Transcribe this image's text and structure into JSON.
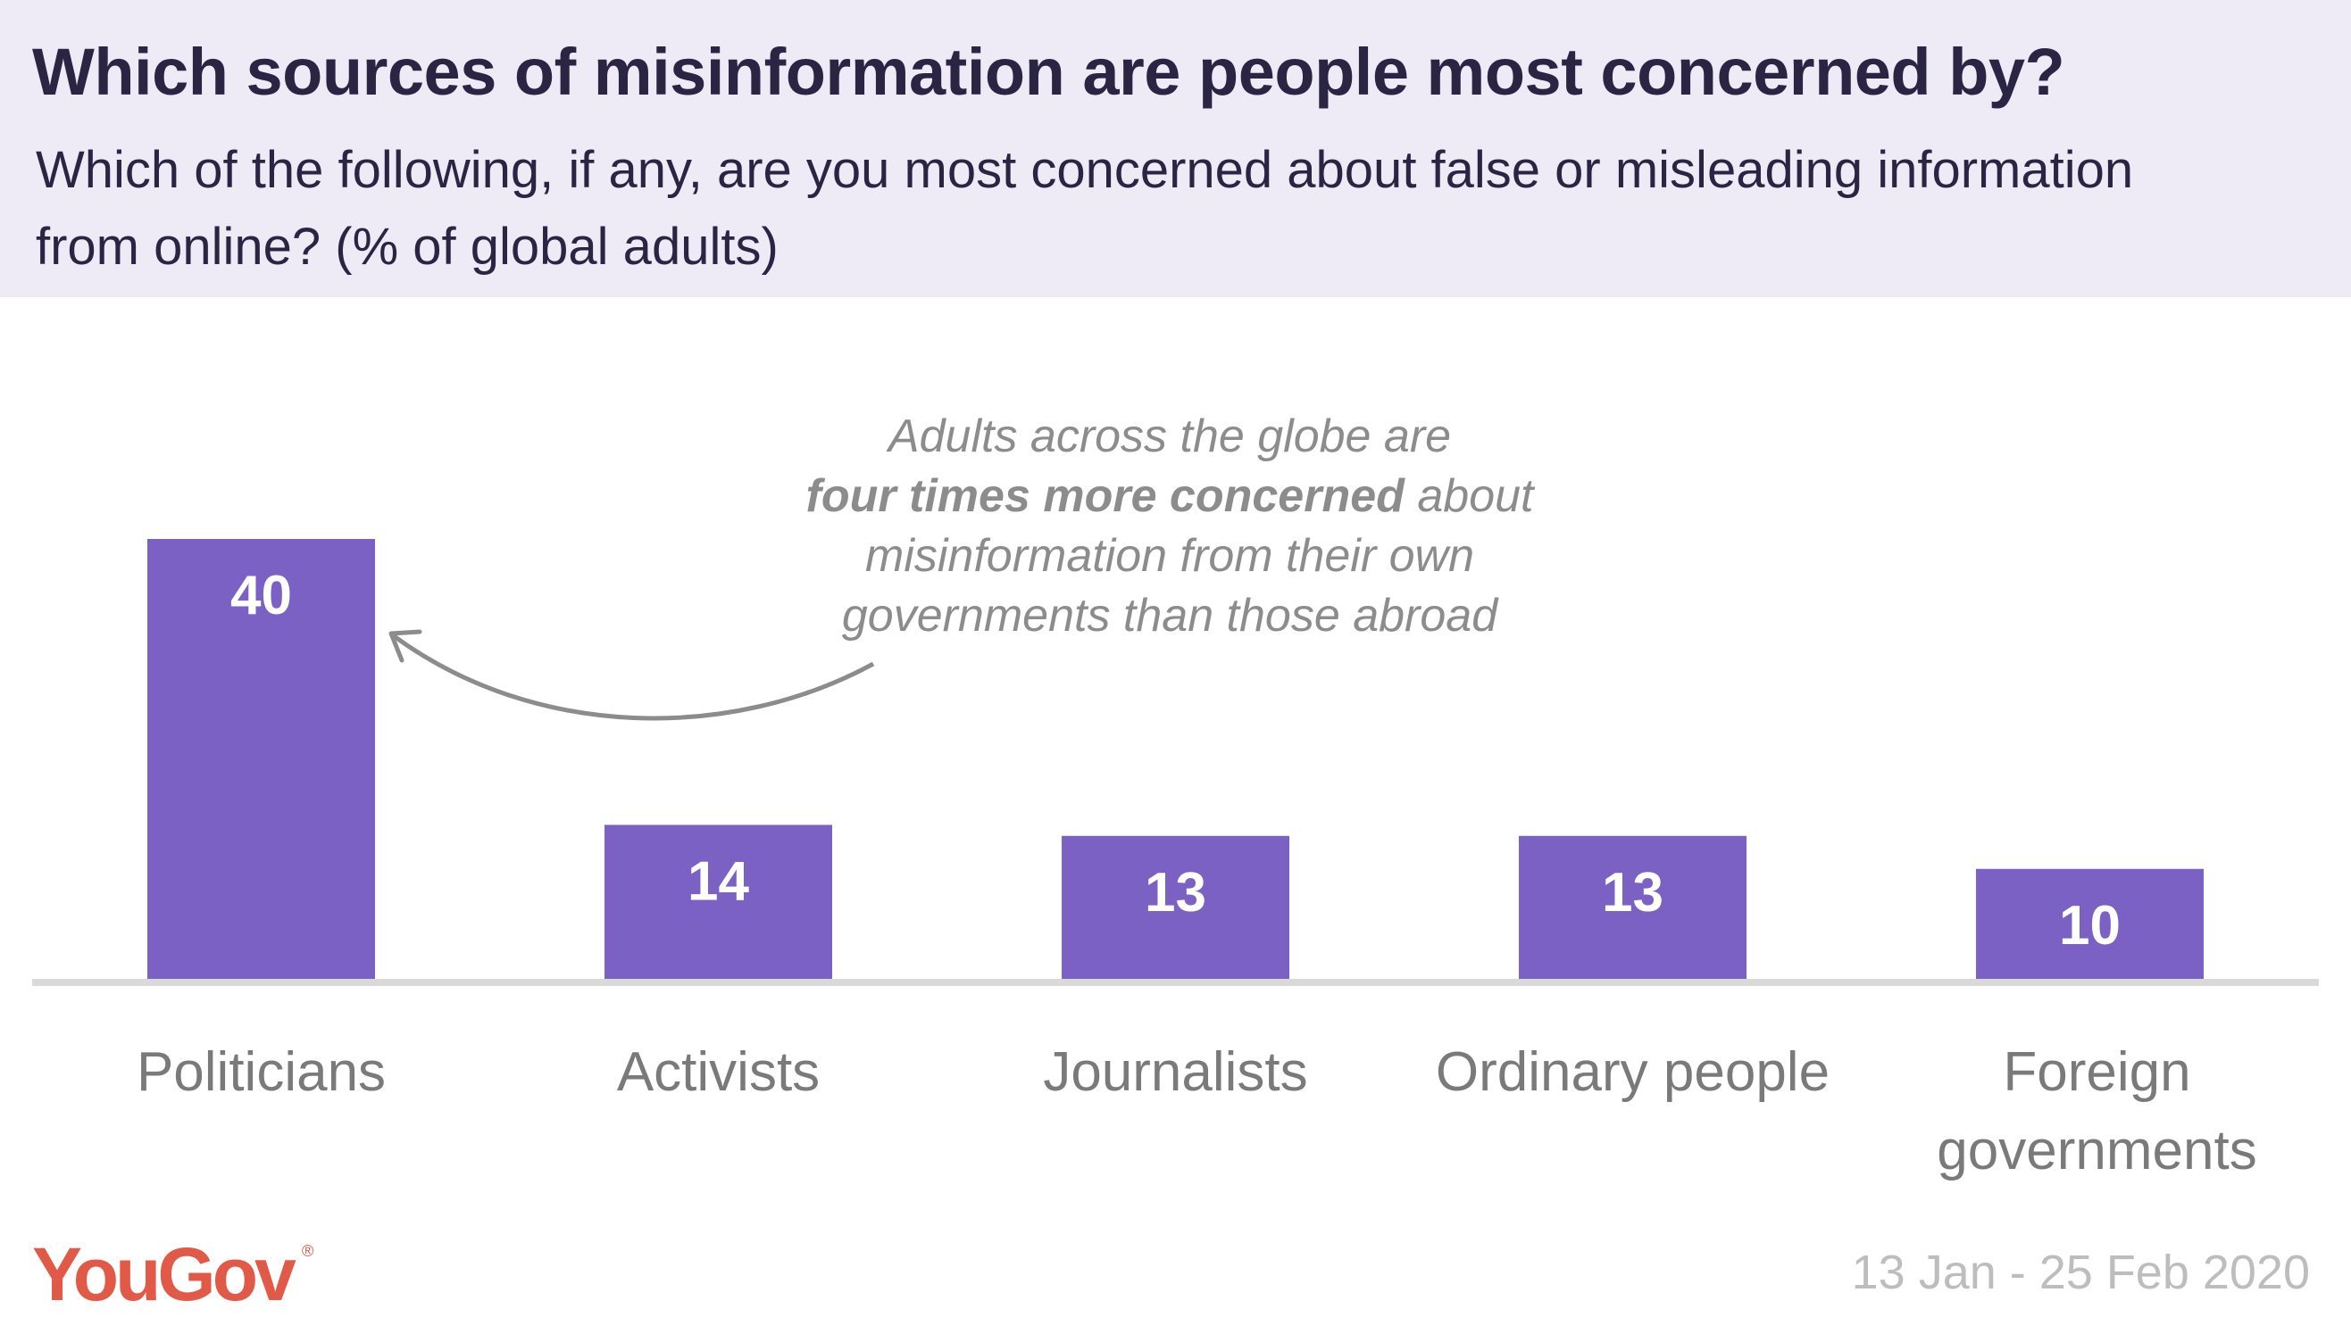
{
  "header": {
    "title": "Which sources of misinformation are people most concerned by?",
    "subtitle": "Which of the following, if any, are you most concerned about false or misleading information from online? (% of global adults)"
  },
  "annotation": {
    "line1": "Adults across the globe are",
    "bold": "four times more concerned",
    "rest1": " about",
    "line3": "misinformation from their own",
    "line4": "governments than those abroad"
  },
  "footer": {
    "brand": "YouGov",
    "date_range": "13 Jan - 25 Feb 2020"
  },
  "colors": {
    "bar": "#7b61c4",
    "header_bg": "#eeebf6",
    "brand": "#e05a47",
    "axis": "#d9d9d9"
  },
  "chart_data": {
    "type": "bar",
    "categories": [
      "Politicians",
      "Activists",
      "Journalists",
      "Ordinary people",
      "Foreign governments"
    ],
    "category_lines": [
      [
        "Politicians"
      ],
      [
        "Activists"
      ],
      [
        "Journalists"
      ],
      [
        "Ordinary people"
      ],
      [
        "Foreign",
        "governments"
      ]
    ],
    "values": [
      40,
      14,
      13,
      13,
      10
    ],
    "ylim": [
      0,
      40
    ],
    "grid": false,
    "legend": "none"
  }
}
